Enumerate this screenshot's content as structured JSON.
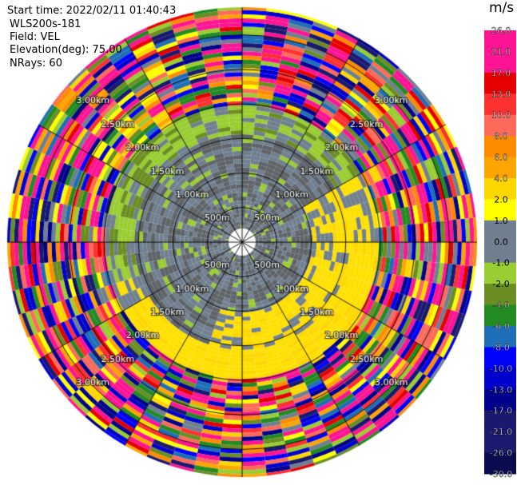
{
  "info": {
    "start_time": "Start time: 2022/02/11 01:40:43",
    "instrument": "WLS200s-181",
    "field": "Field: VEL",
    "elevation": "Elevation(deg): 75.00",
    "nrays": "NRays: 60"
  },
  "colorbar": {
    "unit": "m/s",
    "labels": [
      "26.0",
      "21.0",
      "17.0",
      "13.0",
      "10.0",
      "8.0",
      "6.0",
      "4.0",
      "2.0",
      "1.0",
      "0.0",
      "-1.0",
      "-2.0",
      "-4.0",
      "-6.0",
      "-8.0",
      "-10.0",
      "-13.0",
      "-17.0",
      "-21.0",
      "-26.0",
      "-30.0"
    ],
    "colors": [
      "#ff1493",
      "#ff1493",
      "#e60000",
      "#ff3030",
      "#ff6a5a",
      "#ff8c00",
      "#ffa500",
      "#ffd700",
      "#ffff00",
      "#708090",
      "#708090",
      "#9acd32",
      "#6b8e23",
      "#228b22",
      "#1e6fb8",
      "#0000ff",
      "#0000cd",
      "#00008b",
      "#191970",
      "#1a1a6e",
      "#0a0a50"
    ]
  },
  "chart_data": {
    "type": "heatmap",
    "projection": "polar PPI",
    "field": "VEL",
    "units": "m/s",
    "n_rays": 60,
    "elevation_deg": 75.0,
    "range_rings": [
      "500m",
      "1.00km",
      "1.50km",
      "2.00km",
      "2.50km",
      "3.00km"
    ],
    "range_ring_values_km": [
      0.5,
      1.0,
      1.5,
      2.0,
      2.5,
      3.0
    ],
    "max_range_km": 3.4,
    "regions": [
      {
        "range_km": [
          0.0,
          0.1
        ],
        "description": "blank center"
      },
      {
        "range_km": [
          0.1,
          0.9
        ],
        "dominant_value_ms": 0.0,
        "note": "near-zero velocities (gray) with scattered -1 to -2 (yellow-green)"
      },
      {
        "range_km": [
          0.9,
          1.6
        ],
        "dominant_value_ms": 0.0,
        "note": "gray core, yellow (+2) band on east and south side"
      },
      {
        "range_km": [
          1.6,
          2.0
        ],
        "dominant_value_ms": -1.0,
        "note": "yellow-green ring to north, yellow ring to south-east"
      },
      {
        "range_km": [
          2.0,
          3.4
        ],
        "dominant_value_ms": null,
        "note": "noisy, full-scale random velocities (-30 to 26)"
      }
    ]
  }
}
